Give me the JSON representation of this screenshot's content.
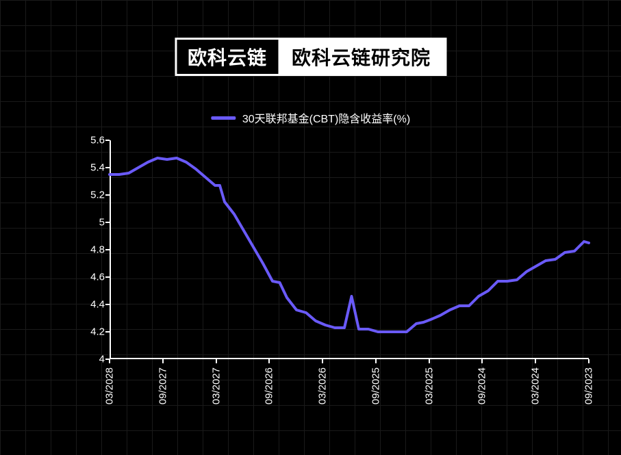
{
  "header": {
    "brand_black": "欧科云链",
    "brand_white": "欧科云链研究院"
  },
  "legend": {
    "label": "30天联邦基金(CBT)隐含收益率(%)",
    "color": "#6a5af9"
  },
  "chart": {
    "type": "line",
    "background_color": "#000000",
    "grid_color": "#1a1a1a",
    "axis_color": "#ffffff",
    "text_color": "#ffffff",
    "line_color": "#6a5af9",
    "line_width": 4,
    "label_fontsize": 15,
    "legend_fontsize": 16,
    "ylim": [
      4,
      5.6
    ],
    "ytick_step": 0.2,
    "y_ticks": [
      4,
      4.2,
      4.4,
      4.6,
      4.8,
      5,
      5.2,
      5.4,
      5.6
    ],
    "x_labels": [
      "03/2028",
      "09/2027",
      "03/2027",
      "09/2026",
      "03/2026",
      "09/2025",
      "03/2025",
      "09/2024",
      "03/2024",
      "09/2023"
    ],
    "series": [
      {
        "x": 0.0,
        "y": 5.35
      },
      {
        "x": 0.02,
        "y": 5.35
      },
      {
        "x": 0.04,
        "y": 5.36
      },
      {
        "x": 0.06,
        "y": 5.4
      },
      {
        "x": 0.08,
        "y": 5.44
      },
      {
        "x": 0.1,
        "y": 5.47
      },
      {
        "x": 0.12,
        "y": 5.46
      },
      {
        "x": 0.14,
        "y": 5.47
      },
      {
        "x": 0.16,
        "y": 5.44
      },
      {
        "x": 0.18,
        "y": 5.39
      },
      {
        "x": 0.2,
        "y": 5.33
      },
      {
        "x": 0.22,
        "y": 5.27
      },
      {
        "x": 0.23,
        "y": 5.27
      },
      {
        "x": 0.24,
        "y": 5.15
      },
      {
        "x": 0.26,
        "y": 5.06
      },
      {
        "x": 0.28,
        "y": 4.94
      },
      {
        "x": 0.3,
        "y": 4.82
      },
      {
        "x": 0.32,
        "y": 4.7
      },
      {
        "x": 0.34,
        "y": 4.57
      },
      {
        "x": 0.355,
        "y": 4.56
      },
      {
        "x": 0.37,
        "y": 4.45
      },
      {
        "x": 0.39,
        "y": 4.36
      },
      {
        "x": 0.41,
        "y": 4.34
      },
      {
        "x": 0.43,
        "y": 4.28
      },
      {
        "x": 0.45,
        "y": 4.25
      },
      {
        "x": 0.47,
        "y": 4.23
      },
      {
        "x": 0.49,
        "y": 4.23
      },
      {
        "x": 0.505,
        "y": 4.46
      },
      {
        "x": 0.52,
        "y": 4.22
      },
      {
        "x": 0.54,
        "y": 4.22
      },
      {
        "x": 0.56,
        "y": 4.2
      },
      {
        "x": 0.58,
        "y": 4.2
      },
      {
        "x": 0.6,
        "y": 4.2
      },
      {
        "x": 0.62,
        "y": 4.2
      },
      {
        "x": 0.64,
        "y": 4.26
      },
      {
        "x": 0.655,
        "y": 4.27
      },
      {
        "x": 0.67,
        "y": 4.29
      },
      {
        "x": 0.69,
        "y": 4.32
      },
      {
        "x": 0.71,
        "y": 4.36
      },
      {
        "x": 0.73,
        "y": 4.39
      },
      {
        "x": 0.75,
        "y": 4.39
      },
      {
        "x": 0.77,
        "y": 4.46
      },
      {
        "x": 0.79,
        "y": 4.5
      },
      {
        "x": 0.81,
        "y": 4.57
      },
      {
        "x": 0.83,
        "y": 4.57
      },
      {
        "x": 0.85,
        "y": 4.58
      },
      {
        "x": 0.87,
        "y": 4.64
      },
      {
        "x": 0.89,
        "y": 4.68
      },
      {
        "x": 0.91,
        "y": 4.72
      },
      {
        "x": 0.93,
        "y": 4.73
      },
      {
        "x": 0.95,
        "y": 4.78
      },
      {
        "x": 0.97,
        "y": 4.79
      },
      {
        "x": 0.99,
        "y": 4.86
      },
      {
        "x": 1.0,
        "y": 4.85
      }
    ]
  }
}
